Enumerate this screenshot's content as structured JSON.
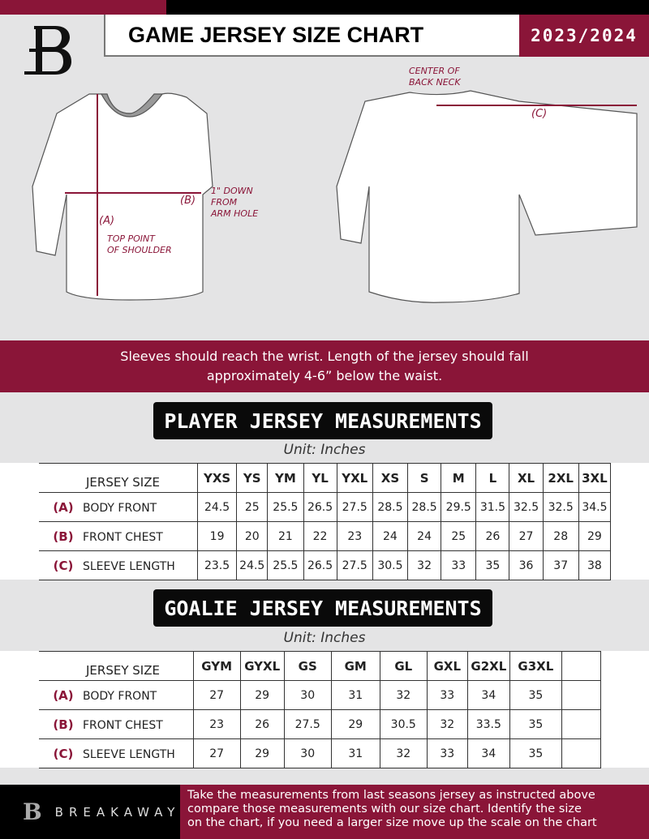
{
  "header": {
    "title": "GAME JERSEY SIZE CHART",
    "season": "2023/2024"
  },
  "colors": {
    "brand": "#8a1538",
    "black": "#000000",
    "background": "#e4e4e5"
  },
  "diagram": {
    "front_label_a": "(A)",
    "front_label_b": "(B)",
    "front_note_a": [
      "TOP POINT",
      "OF SHOULDER"
    ],
    "front_note_b": [
      "1\" DOWN",
      "FROM",
      "ARM HOLE"
    ],
    "back_note": [
      "CENTER OF",
      "BACK NECK"
    ],
    "back_label_c": "(C)"
  },
  "banner": {
    "line1": "Sleeves should reach the wrist. Length of the jersey should fall",
    "line2": "approximately 4-6” below the waist."
  },
  "player": {
    "title": "PLAYER JERSEY MEASUREMENTS",
    "unit": "Unit: Inches",
    "size_label": "JERSEY SIZE",
    "sizes": [
      "YXS",
      "YS",
      "YM",
      "YL",
      "YXL",
      "XS",
      "S",
      "M",
      "L",
      "XL",
      "2XL",
      "3XL"
    ],
    "rows": [
      {
        "key": "(A)",
        "label": "BODY FRONT",
        "values": [
          "24.5",
          "25",
          "25.5",
          "26.5",
          "27.5",
          "28.5",
          "28.5",
          "29.5",
          "31.5",
          "32.5",
          "32.5",
          "34.5"
        ]
      },
      {
        "key": "(B)",
        "label": "FRONT CHEST",
        "values": [
          "19",
          "20",
          "21",
          "22",
          "23",
          "24",
          "24",
          "25",
          "26",
          "27",
          "28",
          "29"
        ]
      },
      {
        "key": "(C)",
        "label": "SLEEVE LENGTH",
        "values": [
          "23.5",
          "24.5",
          "25.5",
          "26.5",
          "27.5",
          "30.5",
          "32",
          "33",
          "35",
          "36",
          "37",
          "38"
        ]
      }
    ]
  },
  "goalie": {
    "title": "GOALIE JERSEY MEASUREMENTS",
    "unit": "Unit: Inches",
    "size_label": "JERSEY SIZE",
    "sizes": [
      "GYM",
      "GYXL",
      "GS",
      "GM",
      "GL",
      "GXL",
      "G2XL",
      "G3XL",
      ""
    ],
    "rows": [
      {
        "key": "(A)",
        "label": "BODY FRONT",
        "values": [
          "27",
          "29",
          "30",
          "31",
          "32",
          "33",
          "34",
          "35",
          ""
        ]
      },
      {
        "key": "(B)",
        "label": "FRONT CHEST",
        "values": [
          "23",
          "26",
          "27.5",
          "29",
          "30.5",
          "32",
          "33.5",
          "35",
          ""
        ]
      },
      {
        "key": "(C)",
        "label": "SLEEVE LENGTH",
        "values": [
          "27",
          "29",
          "30",
          "31",
          "32",
          "33",
          "34",
          "35",
          ""
        ]
      }
    ]
  },
  "footer": {
    "brand": "BREAKAWAY",
    "text": [
      "Take the measurements from last seasons jersey as instructed above",
      "compare those measurements  with our size chart. Identify the size",
      "on the chart, if you need a larger size move up the scale on the chart"
    ]
  }
}
